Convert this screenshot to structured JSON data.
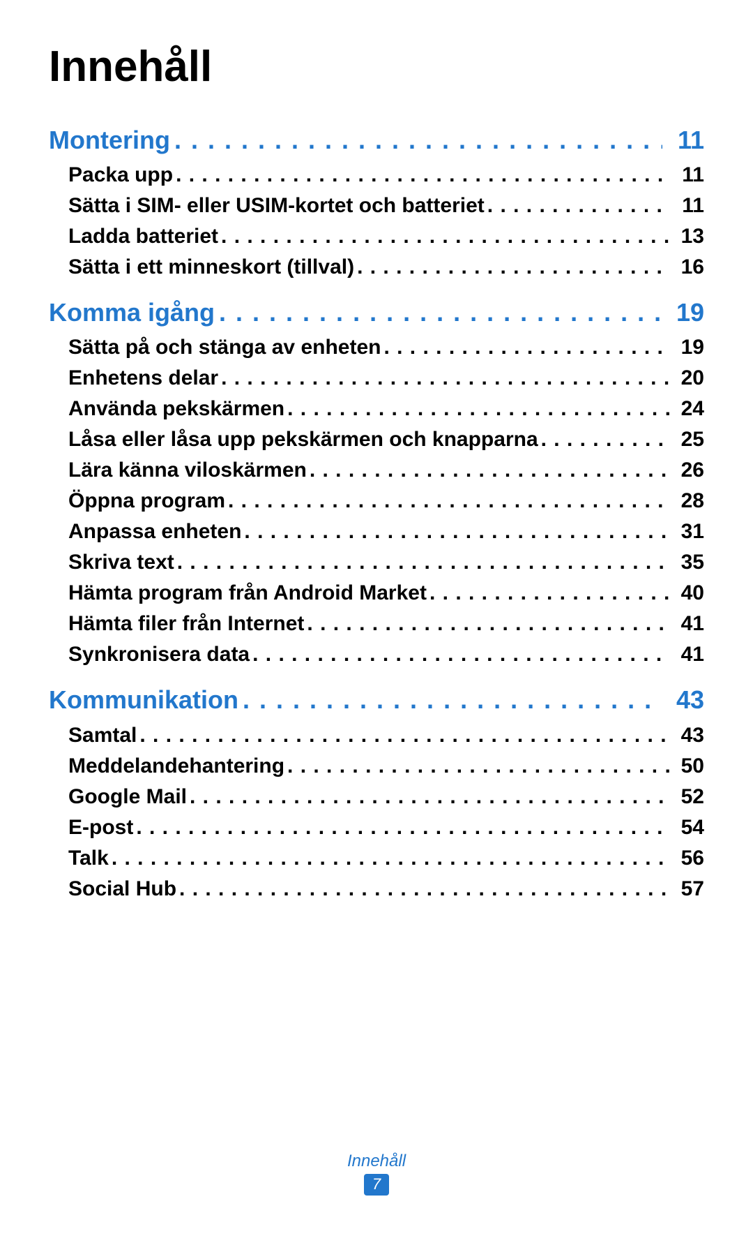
{
  "colors": {
    "accent": "#2277cc",
    "text": "#000000",
    "background": "#ffffff"
  },
  "typography": {
    "title_fontsize_pt": 46,
    "section_fontsize_pt": 27,
    "subitem_fontsize_pt": 22,
    "footer_fontsize_pt": 18,
    "font_family": "Myriad Pro / sans-serif",
    "weight_title": 700,
    "weight_items": 700
  },
  "title": "Innehåll",
  "toc": [
    {
      "label": "Montering",
      "page": "11",
      "items": [
        {
          "label": "Packa upp",
          "page": "11"
        },
        {
          "label": "Sätta i SIM- eller USIM-kortet och batteriet",
          "page": "11"
        },
        {
          "label": "Ladda batteriet",
          "page": "13"
        },
        {
          "label": "Sätta i ett minneskort (tillval)",
          "page": "16"
        }
      ]
    },
    {
      "label": "Komma igång",
      "page": "19",
      "items": [
        {
          "label": "Sätta på och stänga av enheten",
          "page": "19"
        },
        {
          "label": "Enhetens delar",
          "page": "20"
        },
        {
          "label": "Använda pekskärmen",
          "page": "24"
        },
        {
          "label": "Låsa eller låsa upp pekskärmen och knapparna",
          "page": "25"
        },
        {
          "label": "Lära känna viloskärmen",
          "page": "26"
        },
        {
          "label": "Öppna program",
          "page": "28"
        },
        {
          "label": "Anpassa enheten",
          "page": "31"
        },
        {
          "label": "Skriva text",
          "page": "35"
        },
        {
          "label": "Hämta program från Android Market",
          "page": "40"
        },
        {
          "label": "Hämta filer från Internet",
          "page": "41"
        },
        {
          "label": "Synkronisera data",
          "page": "41"
        }
      ]
    },
    {
      "label": "Kommunikation",
      "page": "43",
      "items": [
        {
          "label": "Samtal",
          "page": "43"
        },
        {
          "label": "Meddelandehantering",
          "page": "50"
        },
        {
          "label": "Google Mail",
          "page": "52"
        },
        {
          "label": "E-post",
          "page": "54"
        },
        {
          "label": "Talk",
          "page": "56"
        },
        {
          "label": "Social Hub",
          "page": "57"
        }
      ]
    }
  ],
  "footer": {
    "label": "Innehåll",
    "page_number": "7"
  }
}
